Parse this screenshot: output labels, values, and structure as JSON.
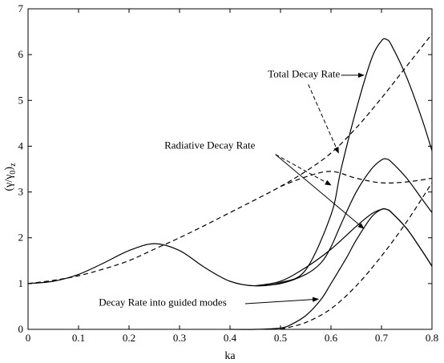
{
  "chart_data": {
    "type": "line",
    "xlabel": "ka",
    "ylabel": "(γ/γ0)z",
    "ylabel_parts": {
      "main": "(γ/γ",
      "sub0": "0",
      "close": ")",
      "subz": "z"
    },
    "xlim": [
      0,
      0.8
    ],
    "ylim": [
      0,
      7
    ],
    "xticks": [
      "0",
      "0.1",
      "0.2",
      "0.3",
      "0.4",
      "0.5",
      "0.6",
      "0.7",
      "0.8"
    ],
    "yticks": [
      "0",
      "1",
      "2",
      "3",
      "4",
      "5",
      "6",
      "7"
    ],
    "grid": false,
    "annotations": [
      {
        "text": "Total Decay Rate",
        "x_text": 0.475,
        "y_text": 5.5
      },
      {
        "text": "Radiative Decay Rate",
        "x_text": 0.27,
        "y_text": 3.95
      },
      {
        "text": "Decay Rate into guided modes",
        "x_text": 0.14,
        "y_text": 0.52
      }
    ],
    "series": [
      {
        "style": "solid",
        "x": [
          0,
          0.05,
          0.1,
          0.15,
          0.2,
          0.25,
          0.3,
          0.35,
          0.4,
          0.45,
          0.5,
          0.55,
          0.6,
          0.62,
          0.65,
          0.68,
          0.7,
          0.71,
          0.72,
          0.75,
          0.78,
          0.8
        ],
        "y": [
          1.0,
          1.05,
          1.2,
          1.45,
          1.72,
          1.87,
          1.72,
          1.35,
          1.05,
          0.95,
          1.02,
          1.3,
          2.5,
          3.5,
          4.8,
          5.9,
          6.3,
          6.33,
          6.2,
          5.5,
          4.6,
          3.9
        ]
      },
      {
        "style": "solid",
        "x": [
          0.45,
          0.5,
          0.55,
          0.58,
          0.6,
          0.62,
          0.65,
          0.68,
          0.7,
          0.71,
          0.72,
          0.75,
          0.78,
          0.8
        ],
        "y": [
          0.95,
          1.0,
          1.2,
          1.45,
          1.8,
          2.3,
          3.0,
          3.5,
          3.7,
          3.72,
          3.65,
          3.3,
          2.85,
          2.55
        ]
      },
      {
        "style": "solid",
        "x": [
          0.45,
          0.5,
          0.55,
          0.6,
          0.65,
          0.68,
          0.7,
          0.71,
          0.72,
          0.75,
          0.78,
          0.8
        ],
        "y": [
          0.95,
          1.05,
          1.35,
          1.75,
          2.25,
          2.52,
          2.62,
          2.62,
          2.55,
          2.2,
          1.72,
          1.38
        ]
      },
      {
        "style": "solid",
        "x": [
          0.4,
          0.45,
          0.5,
          0.52,
          0.55,
          0.58,
          0.6,
          0.63,
          0.65,
          0.68,
          0.7,
          0.71,
          0.72,
          0.75,
          0.78,
          0.8
        ],
        "y": [
          0.0,
          0.0,
          0.03,
          0.1,
          0.3,
          0.65,
          1.0,
          1.55,
          1.95,
          2.45,
          2.62,
          2.62,
          2.55,
          2.2,
          1.72,
          1.38
        ]
      },
      {
        "style": "dashed",
        "x": [
          0,
          0.05,
          0.1,
          0.15,
          0.2,
          0.25,
          0.3,
          0.35,
          0.4,
          0.45,
          0.5,
          0.55,
          0.6,
          0.65,
          0.7,
          0.75,
          0.8
        ],
        "y": [
          1.0,
          1.07,
          1.17,
          1.32,
          1.5,
          1.75,
          2.0,
          2.27,
          2.55,
          2.83,
          3.12,
          3.45,
          3.85,
          4.4,
          5.05,
          5.75,
          6.45
        ]
      },
      {
        "style": "dashed",
        "x": [
          0.5,
          0.55,
          0.6,
          0.65,
          0.7,
          0.75,
          0.8
        ],
        "y": [
          0.0,
          0.15,
          0.45,
          0.95,
          1.6,
          2.35,
          3.2
        ]
      },
      {
        "style": "dashed",
        "x": [
          0.5,
          0.55,
          0.6,
          0.65,
          0.7,
          0.75,
          0.8
        ],
        "y": [
          3.12,
          3.33,
          3.45,
          3.3,
          3.2,
          3.22,
          3.3
        ]
      }
    ]
  }
}
